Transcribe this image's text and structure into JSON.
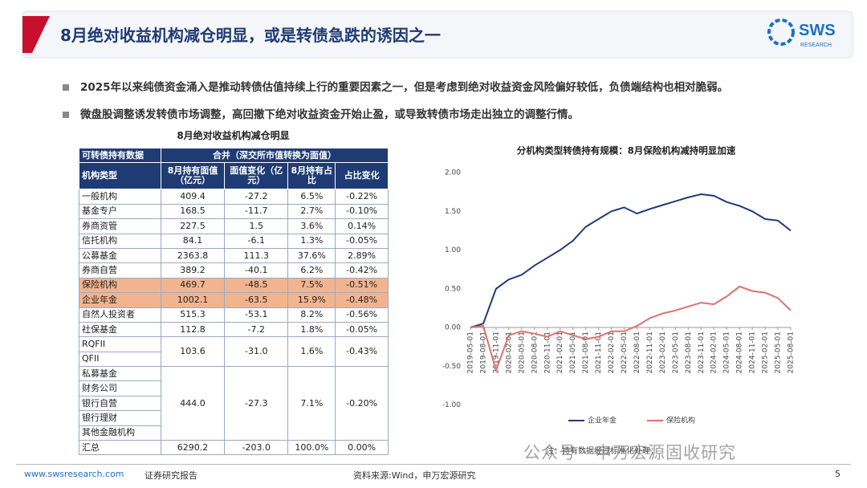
{
  "header": {
    "title": "8月绝对收益机构减仓明显，或是转债急跌的诱因之一",
    "logo": "SWS",
    "logo_sub": "RESEARCH"
  },
  "bullets": [
    "2025年以来纯债资金涌入是推动转债估值持续上行的重要因素之一，但是考虑到绝对收益资金风险偏好较低，负债端结构也相对脆弱。",
    "微盘股调整诱发转债市场调整，高回撤下绝对收益资金开始止盈，或导致转债市场走出独立的调整行情。"
  ],
  "table": {
    "title": "8月绝对收益机构减仓明显",
    "group_header": [
      "可转债持有数据",
      "合并（深交所市值转换为面值）"
    ],
    "columns": [
      "机构类型",
      "8月持有面值（亿元）",
      "面值变化（亿元）",
      "8月持有占比",
      "占比变化"
    ],
    "rows": [
      {
        "labels": [
          "一般机构"
        ],
        "cells": [
          "409.4",
          "-27.2",
          "6.5%",
          "-0.22%"
        ]
      },
      {
        "labels": [
          "基金专户"
        ],
        "cells": [
          "168.5",
          "-11.7",
          "2.7%",
          "-0.10%"
        ]
      },
      {
        "labels": [
          "券商资管"
        ],
        "cells": [
          "227.5",
          "1.5",
          "3.6%",
          "0.14%"
        ]
      },
      {
        "labels": [
          "信托机构"
        ],
        "cells": [
          "84.1",
          "-6.1",
          "1.3%",
          "-0.05%"
        ]
      },
      {
        "labels": [
          "公募基金"
        ],
        "cells": [
          "2363.8",
          "111.3",
          "37.6%",
          "2.89%"
        ]
      },
      {
        "labels": [
          "券商自营"
        ],
        "cells": [
          "389.2",
          "-40.1",
          "6.2%",
          "-0.42%"
        ]
      },
      {
        "labels": [
          "保险机构"
        ],
        "cells": [
          "469.7",
          "-48.5",
          "7.5%",
          "-0.51%"
        ],
        "highlight": true
      },
      {
        "labels": [
          "企业年金"
        ],
        "cells": [
          "1002.1",
          "-63.5",
          "15.9%",
          "-0.48%"
        ],
        "highlight": true
      },
      {
        "labels": [
          "自然人投资者"
        ],
        "cells": [
          "515.3",
          "-53.1",
          "8.2%",
          "-0.56%"
        ]
      },
      {
        "labels": [
          "社保基金"
        ],
        "cells": [
          "112.8",
          "-7.2",
          "1.8%",
          "-0.05%"
        ]
      },
      {
        "labels": [
          "RQFII",
          "QFII"
        ],
        "cells": [
          "103.6",
          "-31.0",
          "1.6%",
          "-0.43%"
        ]
      },
      {
        "labels": [
          "私募基金",
          "财务公司",
          "银行自营",
          "银行理财",
          "其他金融机构"
        ],
        "cells": [
          "444.0",
          "-27.3",
          "7.1%",
          "-0.20%"
        ]
      },
      {
        "labels": [
          "汇总"
        ],
        "cells": [
          "6290.2",
          "-203.0",
          "100.0%",
          "0.00%"
        ]
      }
    ]
  },
  "chart_data": {
    "type": "line",
    "title": "分机构类型转债持有规模：8月保险机构减持明显加速",
    "x": [
      "2019-05-01",
      "2019-08-01",
      "2019-11-01",
      "2020-02-01",
      "2020-05-01",
      "2020-08-01",
      "2020-11-01",
      "2021-02-01",
      "2021-05-01",
      "2021-08-01",
      "2021-11-01",
      "2022-02-01",
      "2022-05-01",
      "2022-08-01",
      "2022-11-01",
      "2023-02-01",
      "2023-05-01",
      "2023-08-01",
      "2023-11-01",
      "2024-02-01",
      "2024-05-01",
      "2024-08-01",
      "2024-11-01",
      "2025-02-01",
      "2025-05-01",
      "2025-08-01"
    ],
    "series": [
      {
        "name": "企业年金",
        "color": "#1f3b73",
        "values": [
          0,
          0.05,
          0.5,
          0.62,
          0.68,
          0.8,
          0.9,
          1.0,
          1.12,
          1.3,
          1.4,
          1.5,
          1.55,
          1.47,
          1.53,
          1.58,
          1.63,
          1.68,
          1.72,
          1.7,
          1.62,
          1.57,
          1.5,
          1.4,
          1.38,
          1.25
        ]
      },
      {
        "name": "保险机构",
        "color": "#e0716b",
        "values": [
          0,
          0.02,
          -0.55,
          -0.1,
          -0.05,
          -0.08,
          -0.12,
          -0.05,
          -0.1,
          -0.15,
          -0.12,
          -0.05,
          -0.05,
          0.02,
          0.12,
          0.18,
          0.22,
          0.27,
          0.32,
          0.3,
          0.4,
          0.53,
          0.47,
          0.45,
          0.38,
          0.22
        ]
      }
    ],
    "ylim": [
      -1,
      2
    ],
    "yticks": [
      {
        "value": -1,
        "label": "-1.00"
      },
      {
        "value": -0.5,
        "label": "-0.50"
      },
      {
        "value": 0,
        "label": "0.00"
      },
      {
        "value": 0.5,
        "label": "0.50"
      },
      {
        "value": 1,
        "label": "1.00"
      },
      {
        "value": 1.5,
        "label": "1.50"
      },
      {
        "value": 2,
        "label": "2.00"
      }
    ],
    "grid": false,
    "legend": "bottom",
    "note": "注：持有数据经过标准化处理；"
  },
  "watermark": "公众号 · 申万宏源固收研究",
  "footer": {
    "site": "www.swsresearch.com",
    "label": "证券研究报告",
    "source": "资料来源:Wind，申万宏源研究",
    "page": "5"
  }
}
